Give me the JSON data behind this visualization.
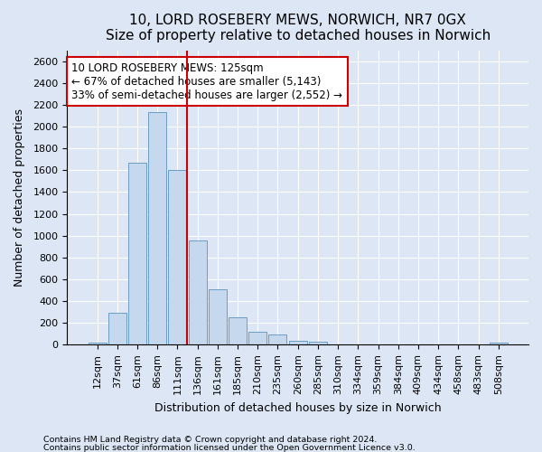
{
  "title1": "10, LORD ROSEBERY MEWS, NORWICH, NR7 0GX",
  "title2": "Size of property relative to detached houses in Norwich",
  "xlabel": "Distribution of detached houses by size in Norwich",
  "ylabel": "Number of detached properties",
  "categories": [
    "12sqm",
    "37sqm",
    "61sqm",
    "86sqm",
    "111sqm",
    "136sqm",
    "161sqm",
    "185sqm",
    "210sqm",
    "235sqm",
    "260sqm",
    "285sqm",
    "310sqm",
    "334sqm",
    "359sqm",
    "384sqm",
    "409sqm",
    "434sqm",
    "458sqm",
    "483sqm",
    "508sqm"
  ],
  "values": [
    20,
    295,
    1670,
    2130,
    1600,
    960,
    505,
    250,
    120,
    95,
    40,
    30,
    5,
    5,
    5,
    5,
    5,
    5,
    5,
    5,
    20
  ],
  "bar_color": "#c5d8ed",
  "bar_edgecolor": "#6b9dc2",
  "vline_x_index": 4.5,
  "annotation_text": "10 LORD ROSEBERY MEWS: 125sqm\n← 67% of detached houses are smaller (5,143)\n33% of semi-detached houses are larger (2,552) →",
  "annotation_box_facecolor": "white",
  "annotation_box_edgecolor": "#cc0000",
  "vline_color": "#cc0000",
  "ylim": [
    0,
    2700
  ],
  "yticks": [
    0,
    200,
    400,
    600,
    800,
    1000,
    1200,
    1400,
    1600,
    1800,
    2000,
    2200,
    2400,
    2600
  ],
  "footnote1": "Contains HM Land Registry data © Crown copyright and database right 2024.",
  "footnote2": "Contains public sector information licensed under the Open Government Licence v3.0.",
  "background_color": "#dce6f5",
  "plot_background_color": "#dce6f5",
  "grid_color": "white",
  "title1_fontsize": 11,
  "title2_fontsize": 10,
  "xlabel_fontsize": 9,
  "ylabel_fontsize": 9,
  "tick_fontsize": 8,
  "annot_fontsize": 8.5
}
